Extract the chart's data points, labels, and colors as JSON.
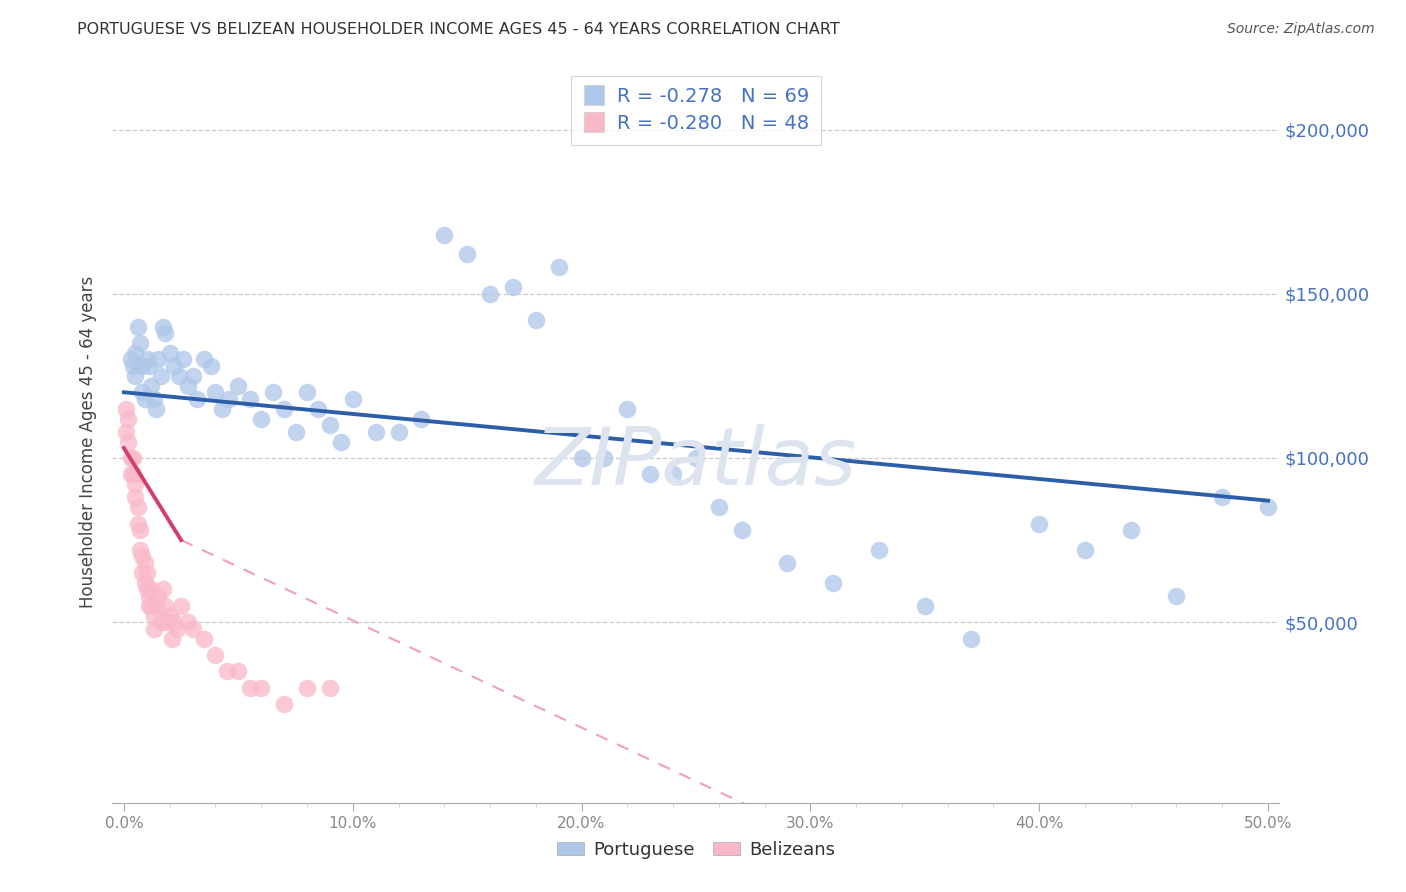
{
  "title": "PORTUGUESE VS BELIZEAN HOUSEHOLDER INCOME AGES 45 - 64 YEARS CORRELATION CHART",
  "source": "Source: ZipAtlas.com",
  "ylabel": "Householder Income Ages 45 - 64 years",
  "ytick_labels": [
    "$50,000",
    "$100,000",
    "$150,000",
    "$200,000"
  ],
  "ytick_values": [
    50000,
    100000,
    150000,
    200000
  ],
  "ylim": [
    -5000,
    215000
  ],
  "xlim": [
    -0.005,
    0.505
  ],
  "scatter_color_portuguese": "#aec6e8",
  "scatter_color_belizean": "#f9b8c8",
  "line_color_portuguese": "#2c5fa8",
  "line_color_belizean": "#d43f6a",
  "dashed_line_color": "#f0a0b8",
  "background_color": "#ffffff",
  "title_color": "#333333",
  "source_color": "#555555",
  "axis_label_color": "#444444",
  "tick_label_color_right": "#4472c4",
  "tick_label_color_bottom": "#888888",
  "watermark_text": "ZIPatlas",
  "watermark_color": "#dde4f0",
  "legend_label_color": "#4472c4",
  "portuguese_line_x": [
    0.0,
    0.5
  ],
  "portuguese_line_y": [
    120000,
    87000
  ],
  "belizean_line_x": [
    0.0,
    0.025
  ],
  "belizean_line_y": [
    103000,
    75000
  ],
  "dashed_line_x": [
    0.025,
    0.5
  ],
  "dashed_line_y": [
    75000,
    -80000
  ],
  "port_x": [
    0.003,
    0.004,
    0.005,
    0.005,
    0.006,
    0.007,
    0.008,
    0.008,
    0.009,
    0.01,
    0.011,
    0.012,
    0.013,
    0.014,
    0.015,
    0.016,
    0.017,
    0.018,
    0.02,
    0.022,
    0.024,
    0.026,
    0.028,
    0.03,
    0.032,
    0.035,
    0.038,
    0.04,
    0.043,
    0.046,
    0.05,
    0.055,
    0.06,
    0.065,
    0.07,
    0.075,
    0.08,
    0.085,
    0.09,
    0.095,
    0.1,
    0.11,
    0.12,
    0.13,
    0.14,
    0.15,
    0.16,
    0.17,
    0.18,
    0.19,
    0.2,
    0.21,
    0.22,
    0.23,
    0.24,
    0.25,
    0.26,
    0.27,
    0.29,
    0.31,
    0.33,
    0.35,
    0.37,
    0.4,
    0.42,
    0.44,
    0.46,
    0.48,
    0.5
  ],
  "port_y": [
    130000,
    128000,
    132000,
    125000,
    140000,
    135000,
    128000,
    120000,
    118000,
    130000,
    128000,
    122000,
    118000,
    115000,
    130000,
    125000,
    140000,
    138000,
    132000,
    128000,
    125000,
    130000,
    122000,
    125000,
    118000,
    130000,
    128000,
    120000,
    115000,
    118000,
    122000,
    118000,
    112000,
    120000,
    115000,
    108000,
    120000,
    115000,
    110000,
    105000,
    118000,
    108000,
    108000,
    112000,
    168000,
    162000,
    150000,
    152000,
    142000,
    158000,
    100000,
    100000,
    115000,
    95000,
    95000,
    100000,
    85000,
    78000,
    68000,
    62000,
    72000,
    55000,
    45000,
    80000,
    72000,
    78000,
    58000,
    88000,
    85000
  ],
  "bel_x": [
    0.001,
    0.001,
    0.002,
    0.002,
    0.003,
    0.003,
    0.004,
    0.004,
    0.005,
    0.005,
    0.006,
    0.006,
    0.007,
    0.007,
    0.008,
    0.008,
    0.009,
    0.009,
    0.01,
    0.01,
    0.011,
    0.011,
    0.012,
    0.012,
    0.013,
    0.013,
    0.014,
    0.015,
    0.016,
    0.017,
    0.018,
    0.019,
    0.02,
    0.021,
    0.022,
    0.023,
    0.025,
    0.028,
    0.03,
    0.035,
    0.04,
    0.045,
    0.05,
    0.055,
    0.06,
    0.07,
    0.08,
    0.09
  ],
  "bel_y": [
    115000,
    108000,
    112000,
    105000,
    100000,
    95000,
    100000,
    95000,
    92000,
    88000,
    85000,
    80000,
    78000,
    72000,
    70000,
    65000,
    68000,
    62000,
    65000,
    60000,
    58000,
    55000,
    60000,
    55000,
    52000,
    48000,
    55000,
    58000,
    50000,
    60000,
    55000,
    50000,
    52000,
    45000,
    50000,
    48000,
    55000,
    50000,
    48000,
    45000,
    40000,
    35000,
    35000,
    30000,
    30000,
    25000,
    30000,
    30000
  ]
}
